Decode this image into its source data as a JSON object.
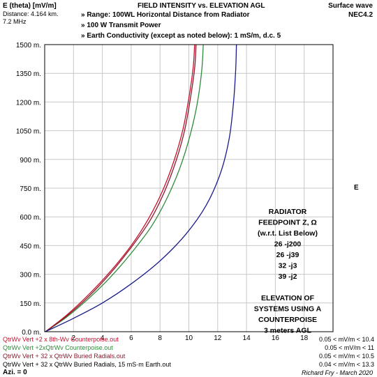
{
  "header": {
    "y_label": "E (theta) [mV/m]",
    "distance": "Distance: 4.164 km.",
    "frequency": "7.2 MHz",
    "title": "FIELD INTENSITY vs. ELEVATION AGL",
    "bullets": [
      "»  Range: 100WL Horizontal Distance from Radiator",
      "»  100 W Transmit Power",
      "»  Earth Conductivity (except as noted below):  1 mS/m, d.c. 5"
    ],
    "wave_type": "Surface wave",
    "program": "NEC4.2"
  },
  "right_axis_label": "E",
  "annotation": [
    "RADIATOR",
    "FEEDPOINT Z, Ω",
    "(w.r.t. List Below)",
    "26 -j200",
    "26 -j39",
    "32 -j3",
    "39 -j2",
    "",
    "ELEVATION OF",
    "SYSTEMS USING A",
    "COUNTERPOISE",
    "3 meters AGL"
  ],
  "chart_data": {
    "type": "line",
    "xlim": [
      0,
      20
    ],
    "ylim": [
      0,
      1500
    ],
    "x_ticks": [
      2,
      4,
      6,
      8,
      10,
      12,
      14,
      16,
      18
    ],
    "y_ticks": [
      "0.0 m.",
      "150 m.",
      "300 m.",
      "450 m.",
      "600 m.",
      "750 m.",
      "900 m.",
      "1050 m.",
      "1200 m.",
      "1350 m.",
      "1500 m."
    ],
    "y_tick_values": [
      0,
      150,
      300,
      450,
      600,
      750,
      900,
      1050,
      1200,
      1350,
      1500
    ],
    "grid": true,
    "series": [
      {
        "name": "QtrWv Vert +2 x 8th-Wv Counterpoise.out",
        "range": "0.05 < mV/m < 10.4",
        "color": "#c8102e",
        "x": [
          0.05,
          1.5,
          3.0,
          4.5,
          6.0,
          7.2,
          8.2,
          9.0,
          9.6,
          10.0,
          10.3,
          10.4
        ],
        "y": [
          0,
          85,
          190,
          310,
          450,
          590,
          740,
          900,
          1060,
          1220,
          1380,
          1500
        ]
      },
      {
        "name": "QtrWv Vert +2xQtrWv Counterpoise.out",
        "color": "#2e8b3a",
        "range": "0.05 < mV/m < 11",
        "x": [
          0.05,
          1.5,
          3.0,
          4.5,
          6.0,
          7.4,
          8.5,
          9.4,
          10.1,
          10.6,
          10.9,
          11.0
        ],
        "y": [
          0,
          75,
          170,
          280,
          410,
          550,
          700,
          860,
          1030,
          1200,
          1370,
          1500
        ]
      },
      {
        "name": "QtrWv Vert + 32 x QtrWv Buried Radials.out",
        "range": "0.05 < mV/m < 10.5",
        "color": "#8b1a2b",
        "x": [
          0.05,
          1.5,
          3.0,
          4.5,
          6.0,
          7.3,
          8.3,
          9.1,
          9.7,
          10.1,
          10.4,
          10.5
        ],
        "y": [
          0,
          80,
          180,
          300,
          440,
          580,
          730,
          890,
          1050,
          1215,
          1375,
          1500
        ]
      },
      {
        "name": "QtrWv Vert + 32 x QtrWv Buried Radials, 15 mS·m Earth.out",
        "range": "0.04 < mV/m < 13.3",
        "color": "#1a1a8c",
        "x": [
          0.04,
          2.0,
          4.0,
          6.0,
          8.0,
          9.8,
          11.2,
          12.2,
          12.8,
          13.1,
          13.25,
          13.3
        ],
        "y": [
          0,
          70,
          150,
          250,
          370,
          510,
          660,
          830,
          1010,
          1200,
          1370,
          1500
        ]
      }
    ]
  },
  "footer": {
    "azimuth": "Azi. = 0",
    "credit": "Richard Fry - March 2020"
  }
}
